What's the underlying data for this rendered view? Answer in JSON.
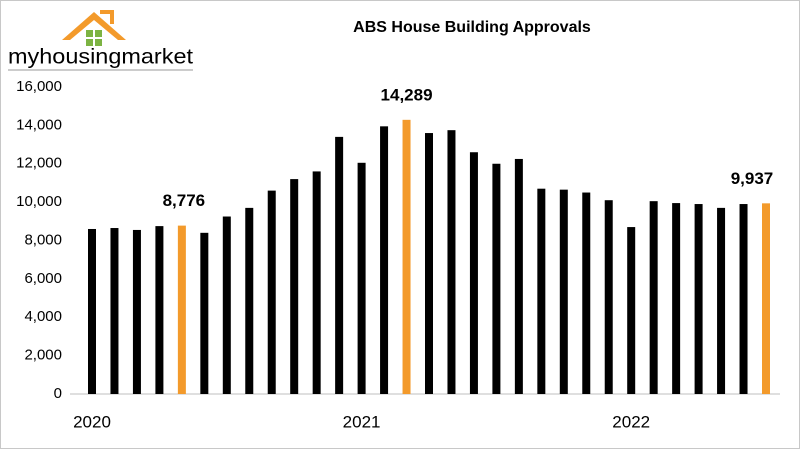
{
  "logo": "myhousingmarket",
  "chart_data": {
    "type": "bar",
    "title": "ABS House Building  Approvals",
    "categories": [
      "2020",
      null,
      null,
      null,
      null,
      null,
      null,
      null,
      null,
      null,
      null,
      null,
      "2021",
      null,
      null,
      null,
      null,
      null,
      null,
      null,
      null,
      null,
      null,
      null,
      "2022",
      null,
      null,
      null,
      null,
      null,
      null
    ],
    "values": [
      8600,
      8650,
      8550,
      8750,
      8776,
      8400,
      9250,
      9700,
      10600,
      11200,
      11600,
      13400,
      12050,
      13950,
      14289,
      13600,
      13750,
      12600,
      12000,
      12250,
      10700,
      10650,
      10500,
      10100,
      8700,
      10050,
      9950,
      9900,
      9700,
      9900,
      9937
    ],
    "value_labels": [
      null,
      null,
      null,
      null,
      "8,776",
      null,
      null,
      null,
      null,
      null,
      null,
      null,
      null,
      null,
      "14,289",
      null,
      null,
      null,
      null,
      null,
      null,
      null,
      null,
      null,
      null,
      null,
      null,
      null,
      null,
      null,
      "9,937"
    ],
    "color": "#000000",
    "highlight_color": "#f39a2b",
    "ylim": [
      0,
      16000
    ],
    "yticks": [
      0,
      {
        "value": 2000,
        "label": "2,000"
      },
      {
        "value": 4000,
        "label": "4,000"
      },
      {
        "value": 6000,
        "label": "6,000"
      },
      {
        "value": 8000,
        "label": "8,000"
      },
      {
        "value": 10000,
        "label": "10,000"
      },
      {
        "value": 12000,
        "label": "12,000"
      },
      {
        "value": 14000,
        "label": "14,000"
      },
      {
        "value": 16000,
        "label": "16,000"
      }
    ],
    "grid": false
  }
}
